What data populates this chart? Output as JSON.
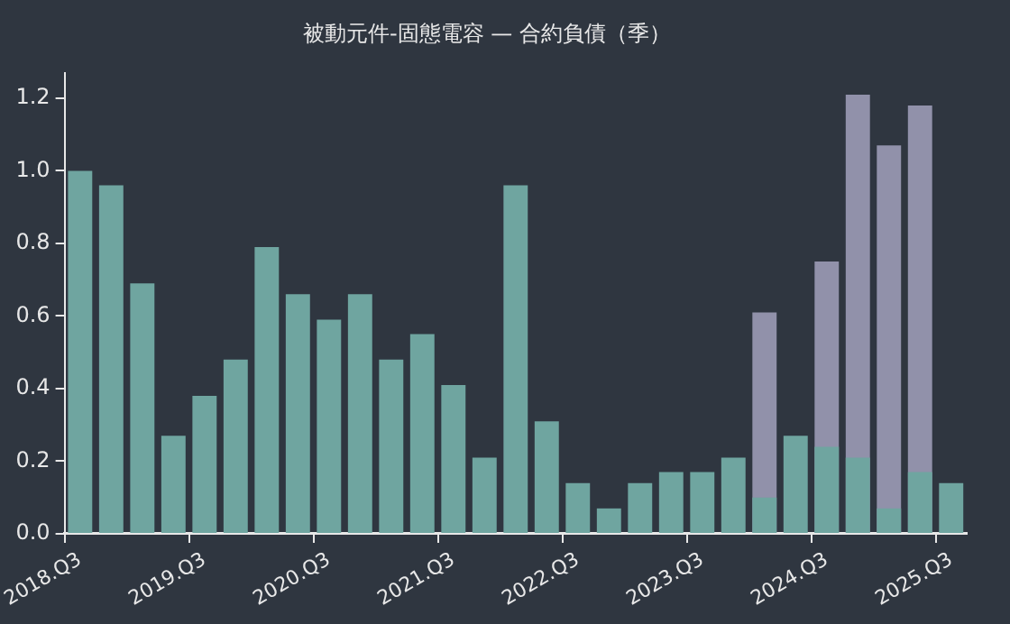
{
  "chart_data": {
    "type": "bar",
    "title": "被動元件-固態電容 — 合約負債（季）",
    "categories": [
      "2018.Q3",
      null,
      null,
      null,
      "2019.Q3",
      null,
      null,
      null,
      "2020.Q3",
      null,
      null,
      null,
      "2021.Q3",
      null,
      null,
      null,
      "2022.Q3",
      null,
      null,
      null,
      "2023.Q3",
      null,
      null,
      null,
      "2024.Q3",
      null,
      null,
      null,
      "2025.Q3"
    ],
    "series": [
      {
        "color": "#6fa5a0",
        "values": [
          1.0,
          0.96,
          0.69,
          0.27,
          0.38,
          0.48,
          0.79,
          0.66,
          0.59,
          0.66,
          0.48,
          0.55,
          0.41,
          0.21,
          0.96,
          0.31,
          0.14,
          0.07,
          0.14,
          0.17,
          0.17,
          0.21,
          0.1,
          0.27,
          0.24,
          0.21,
          0.07,
          0.17,
          0.14
        ]
      },
      {
        "color": "#9191aa",
        "values": [
          null,
          null,
          null,
          null,
          null,
          null,
          null,
          null,
          null,
          null,
          null,
          null,
          null,
          null,
          null,
          null,
          null,
          null,
          null,
          null,
          null,
          null,
          0.61,
          null,
          0.75,
          1.21,
          1.07,
          1.18,
          null
        ]
      }
    ],
    "ylim": [
      0,
      1.27
    ],
    "yticks": [
      {
        "value": 0,
        "label": "0.0"
      },
      {
        "value": 0.2,
        "label": "0.2"
      },
      {
        "value": 0.4,
        "label": "0.4"
      },
      {
        "value": 0.6,
        "label": "0.6"
      },
      {
        "value": 0.8,
        "label": "0.8"
      },
      {
        "value": 1.0,
        "label": "1.0"
      },
      {
        "value": 1.2,
        "label": "1.2"
      }
    ],
    "grid": false,
    "legend": false
  }
}
